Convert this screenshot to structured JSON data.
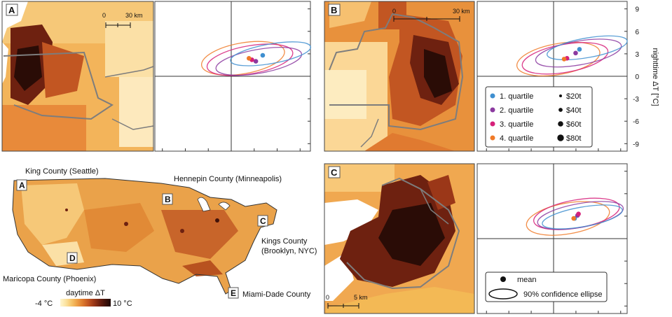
{
  "panels": {
    "A": {
      "letter": "A",
      "scale_zero": "0",
      "scale_label": "30 km"
    },
    "B": {
      "letter": "B",
      "scale_zero": "0",
      "scale_label": "30 km"
    },
    "C": {
      "letter": "C",
      "scale_zero": "0",
      "scale_label": "5 km"
    },
    "D": {
      "letter": "D"
    },
    "E": {
      "letter": "E"
    }
  },
  "us_map": {
    "labels": {
      "king": "King County (Seattle)",
      "hennepin": "Hennepin County (Minneapolis)",
      "kings_1": "Kings County",
      "kings_2": "(Brooklyn, NYC)",
      "maricopa": "Maricopa County (Phoenix)",
      "miami": "Miami-Dade County"
    },
    "colorbar": {
      "title": "daytime ΔT",
      "min_label": "-4 °C",
      "max_label": "10 °C",
      "colors": [
        "#fff6d0",
        "#fbe3a0",
        "#f6c56a",
        "#eda046",
        "#dc7a2e",
        "#c25622",
        "#9b3718",
        "#6e2110",
        "#42120a",
        "#1e0804"
      ]
    }
  },
  "chart_data": [
    {
      "type": "scatter",
      "panel": "A",
      "ylabel": "nighttime ΔT [°C]",
      "ylim": [
        -10,
        10
      ],
      "yticks": [
        "9",
        "6",
        "3",
        "0",
        "-3",
        "-6",
        "-9"
      ],
      "series": [
        {
          "name": "1. quartile",
          "color": "#3f8fd0",
          "x": 3.2,
          "y": 2.8,
          "size": "$20t"
        },
        {
          "name": "2. quartile",
          "color": "#8b3aa0",
          "x": 2.5,
          "y": 2.0,
          "size": "$40t"
        },
        {
          "name": "3. quartile",
          "color": "#d6207a",
          "x": 2.1,
          "y": 2.2,
          "size": "$60t"
        },
        {
          "name": "4. quartile",
          "color": "#f07a28",
          "x": 1.8,
          "y": 2.4,
          "size": "$80t"
        }
      ]
    },
    {
      "type": "scatter",
      "panel": "B",
      "series": [
        {
          "name": "1. quartile",
          "color": "#3f8fd0",
          "x": 2.7,
          "y": 3.6,
          "size": "$20t"
        },
        {
          "name": "2. quartile",
          "color": "#8b3aa0",
          "x": 2.3,
          "y": 3.1,
          "size": "$40t"
        },
        {
          "name": "3. quartile",
          "color": "#d6207a",
          "x": 1.4,
          "y": 2.4,
          "size": "$60t"
        },
        {
          "name": "4. quartile",
          "color": "#f07a28",
          "x": 1.1,
          "y": 2.3,
          "size": "$80t"
        }
      ]
    },
    {
      "type": "scatter",
      "panel": "C",
      "series": [
        {
          "name": "1. quartile",
          "color": "#3f8fd0",
          "x": 2.2,
          "y": 2.7,
          "size": "$20t"
        },
        {
          "name": "2. quartile",
          "color": "#8b3aa0",
          "x": 2.5,
          "y": 3.1,
          "size": "$40t"
        },
        {
          "name": "3. quartile",
          "color": "#d6207a",
          "x": 2.6,
          "y": 3.3,
          "size": "$60t"
        },
        {
          "name": "4. quartile",
          "color": "#f07a28",
          "x": 2.1,
          "y": 2.7,
          "size": "$80t"
        }
      ]
    }
  ],
  "legend_quartiles": {
    "items": [
      {
        "label": "1. quartile",
        "color": "#3f8fd0"
      },
      {
        "label": "2. quartile",
        "color": "#8b3aa0"
      },
      {
        "label": "3. quartile",
        "color": "#d6207a"
      },
      {
        "label": "4. quartile",
        "color": "#f07a28"
      }
    ],
    "sizes": [
      "$20t",
      "$40t",
      "$60t",
      "$80t"
    ]
  },
  "legend_symbols": {
    "mean_label": "mean",
    "ellipse_label": "90% confidence ellipse"
  }
}
